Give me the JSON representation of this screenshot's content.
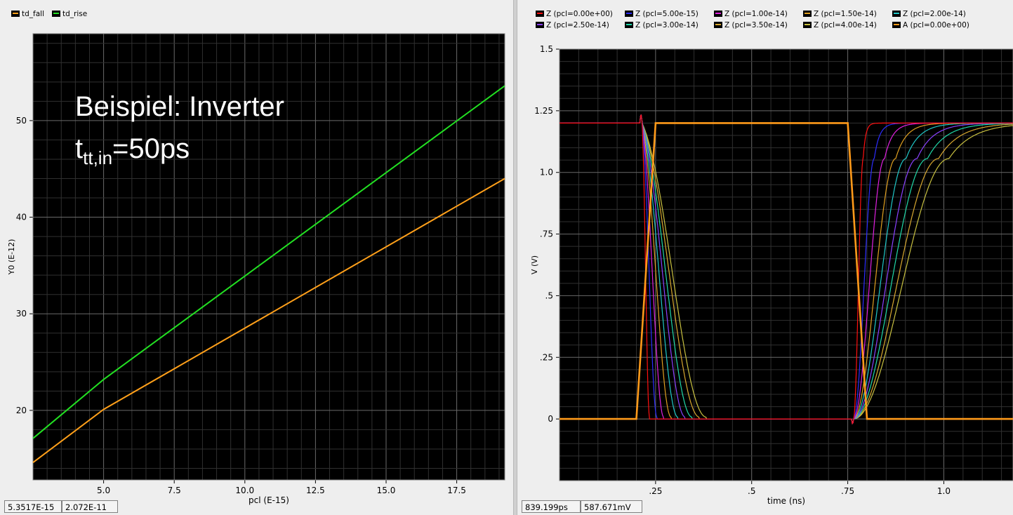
{
  "left": {
    "legend": [
      {
        "label": "td_fall",
        "color": "#ffa01a"
      },
      {
        "label": "td_rise",
        "color": "#22e022"
      }
    ],
    "annotation": {
      "line1": "Beispiel: Inverter",
      "sub_t": "t",
      "sub": "tt,in",
      "rest": "=50ps"
    },
    "readouts": [
      "5.3517E-15",
      "2.072E-11"
    ]
  },
  "right": {
    "legend": [
      {
        "label": "Z (pcl=0.00e+00)",
        "color": "#ff1010"
      },
      {
        "label": "Z (pcl=5.00e-15)",
        "color": "#2d2dff"
      },
      {
        "label": "Z (pcl=1.00e-14)",
        "color": "#e020e0"
      },
      {
        "label": "Z (pcl=1.50e-14)",
        "color": "#e0a020"
      },
      {
        "label": "Z (pcl=2.00e-14)",
        "color": "#20c8c8"
      },
      {
        "label": "Z (pcl=2.50e-14)",
        "color": "#8a40ff"
      },
      {
        "label": "Z (pcl=3.00e-14)",
        "color": "#20d8a8"
      },
      {
        "label": "Z (pcl=3.50e-14)",
        "color": "#d8a830"
      },
      {
        "label": "Z (pcl=4.00e-14)",
        "color": "#c8c040"
      },
      {
        "label": "A (pcl=0.00e+00)",
        "color": "#ff9a1a"
      }
    ],
    "readouts": [
      "839.199ps",
      "587.671mV"
    ]
  },
  "chart_data": [
    {
      "type": "line",
      "xlabel": "pcl (E-15)",
      "ylabel": "Y0 (E-12)",
      "xlim": [
        2.5,
        19.2
      ],
      "ylim": [
        12.8,
        59
      ],
      "xticks": [
        5.0,
        7.5,
        10.0,
        12.5,
        15.0,
        17.5
      ],
      "xticklabels": [
        "5.0",
        "7.5",
        "10.0",
        "12.5",
        "15.0",
        "17.5"
      ],
      "yticks": [
        20,
        30,
        40,
        50
      ],
      "yticklabels": [
        "20",
        "30",
        "40",
        "50"
      ],
      "grid": true,
      "background": "#000000",
      "legend_position": "top-left",
      "series": [
        {
          "name": "td_fall",
          "color": "#ffa01a",
          "x": [
            2.5,
            5,
            19.2
          ],
          "y": [
            14.6,
            20.1,
            44.0
          ]
        },
        {
          "name": "td_rise",
          "color": "#22e022",
          "x": [
            2.5,
            5,
            19.2
          ],
          "y": [
            17.1,
            23.2,
            53.6
          ]
        }
      ]
    },
    {
      "type": "line",
      "xlabel": "time (ns)",
      "ylabel": "V (V)",
      "xlim": [
        0,
        1.18
      ],
      "ylim": [
        -0.25,
        1.5
      ],
      "xticks": [
        0.25,
        0.5,
        0.75,
        1.0
      ],
      "xticklabels": [
        ".25",
        ".5",
        ".75",
        "1.0"
      ],
      "yticks": [
        0,
        0.25,
        0.5,
        0.75,
        1.0,
        1.25,
        1.5
      ],
      "yticklabels": [
        "0",
        ".25",
        ".5",
        ".75",
        "1.0",
        "1.25",
        "1.5"
      ],
      "grid": true,
      "background": "#000000",
      "legend_position": "top",
      "input": {
        "name": "A (pcl=0.00e+00)",
        "color": "#ff9a1a",
        "x": [
          0,
          0.2,
          0.25,
          0.75,
          0.8,
          1.18
        ],
        "y": [
          0,
          0,
          1.2,
          1.2,
          0,
          0
        ]
      },
      "outputs": [
        {
          "name": "Z (pcl=0.00e+00)",
          "color": "#ff1010",
          "pcl": 0.0
        },
        {
          "name": "Z (pcl=5.00e-15)",
          "color": "#2d2dff",
          "pcl": 5e-15
        },
        {
          "name": "Z (pcl=1.00e-14)",
          "color": "#e020e0",
          "pcl": 1e-14
        },
        {
          "name": "Z (pcl=1.50e-14)",
          "color": "#e0a020",
          "pcl": 1.5e-14
        },
        {
          "name": "Z (pcl=2.00e-14)",
          "color": "#20c8c8",
          "pcl": 2e-14
        },
        {
          "name": "Z (pcl=2.50e-14)",
          "color": "#8a40ff",
          "pcl": 2.5e-14
        },
        {
          "name": "Z (pcl=3.00e-14)",
          "color": "#20d8a8",
          "pcl": 3e-14
        },
        {
          "name": "Z (pcl=3.50e-14)",
          "color": "#d8a830",
          "pcl": 3.5e-14
        },
        {
          "name": "Z (pcl=4.00e-14)",
          "color": "#c8c040",
          "pcl": 4e-14
        }
      ],
      "output_high": 1.2,
      "output_low": 0.0,
      "output_fall_start_ns": 0.215,
      "output_fall_90_10_ns": [
        0.012,
        0.024,
        0.035,
        0.047,
        0.058,
        0.07,
        0.081,
        0.093,
        0.104
      ],
      "output_rise_start_ns": 0.765,
      "output_rise_10_90_ns": [
        0.014,
        0.03,
        0.045,
        0.061,
        0.076,
        0.092,
        0.107,
        0.123,
        0.138
      ]
    }
  ]
}
